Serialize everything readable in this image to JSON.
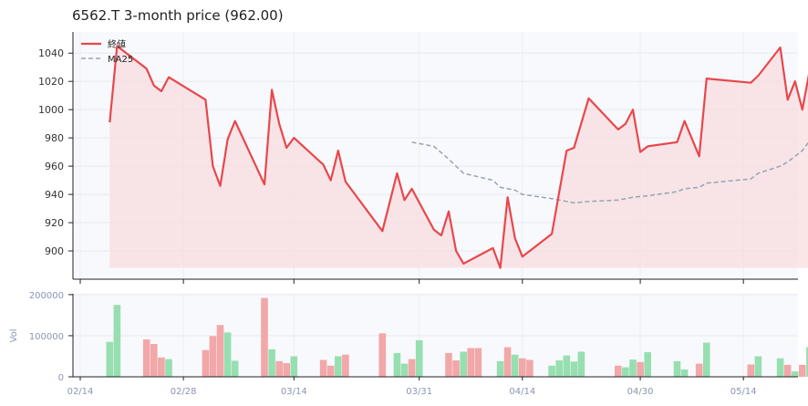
{
  "chart_data": [
    {
      "type": "line",
      "title": "6562.T  3-month price (962.00)",
      "legend_placement": "top-left",
      "grid": true,
      "colors": {
        "price": "#e8474c",
        "ma25": "#97a3b6",
        "fill": "#f8dcdf",
        "panel_bg": "#f8f9fc"
      },
      "ylim": [
        880,
        1055
      ],
      "y_ticks": [
        900,
        920,
        940,
        960,
        980,
        1000,
        1020,
        1040
      ],
      "x_tick_labels": [
        "02/14",
        "02/28",
        "03/14",
        "03/31",
        "04/14",
        "04/30",
        "05/14"
      ],
      "series": [
        {
          "name": "終値",
          "points": [
            [
              "02/18",
              991
            ],
            [
              "02/19",
              1045
            ],
            [
              "02/23",
              1029
            ],
            [
              "02/24",
              1017
            ],
            [
              "02/25",
              1013
            ],
            [
              "02/26",
              1023
            ],
            [
              "03/02",
              1007
            ],
            [
              "03/03",
              960
            ],
            [
              "03/04",
              946
            ],
            [
              "03/05",
              979
            ],
            [
              "03/06",
              992
            ],
            [
              "03/10",
              947
            ],
            [
              "03/11",
              1014
            ],
            [
              "03/12",
              990
            ],
            [
              "03/13",
              973
            ],
            [
              "03/14",
              980
            ],
            [
              "03/18",
              961
            ],
            [
              "03/19",
              950
            ],
            [
              "03/20",
              971
            ],
            [
              "03/21",
              949
            ],
            [
              "03/26",
              914
            ],
            [
              "03/28",
              955
            ],
            [
              "03/29",
              936
            ],
            [
              "03/30",
              944
            ],
            [
              "04/02",
              915
            ],
            [
              "04/03",
              911
            ],
            [
              "04/04",
              928
            ],
            [
              "04/05",
              900
            ],
            [
              "04/06",
              891
            ],
            [
              "04/10",
              902
            ],
            [
              "04/11",
              888
            ],
            [
              "04/12",
              938
            ],
            [
              "04/13",
              909
            ],
            [
              "04/14",
              896
            ],
            [
              "04/18",
              912
            ],
            [
              "04/20",
              971
            ],
            [
              "04/21",
              973
            ],
            [
              "04/23",
              1008
            ],
            [
              "04/27",
              986
            ],
            [
              "04/28",
              990
            ],
            [
              "04/29",
              1000
            ],
            [
              "04/30",
              970
            ],
            [
              "05/01",
              974
            ],
            [
              "05/05",
              977
            ],
            [
              "05/06",
              992
            ],
            [
              "05/08",
              967
            ],
            [
              "05/09",
              1022
            ],
            [
              "05/15",
              1019
            ],
            [
              "05/16",
              1024
            ],
            [
              "05/19",
              1044
            ],
            [
              "05/20",
              1007
            ],
            [
              "05/21",
              1020
            ],
            [
              "05/22",
              1000
            ],
            [
              "05/23",
              1028
            ],
            [
              "05/27",
              971
            ],
            [
              "05/28",
              962
            ]
          ]
        },
        {
          "name": "MA25",
          "points": [
            [
              "03/30",
              977
            ],
            [
              "04/02",
              974
            ],
            [
              "04/04",
              965
            ],
            [
              "04/06",
              955
            ],
            [
              "04/10",
              950
            ],
            [
              "04/11",
              945
            ],
            [
              "04/13",
              943
            ],
            [
              "04/14",
              940
            ],
            [
              "04/18",
              937
            ],
            [
              "04/20",
              935
            ],
            [
              "04/21",
              934
            ],
            [
              "04/23",
              935
            ],
            [
              "04/27",
              936
            ],
            [
              "04/29",
              938
            ],
            [
              "05/01",
              939
            ],
            [
              "05/05",
              942
            ],
            [
              "05/06",
              944
            ],
            [
              "05/08",
              945
            ],
            [
              "05/09",
              948
            ],
            [
              "05/15",
              951
            ],
            [
              "05/16",
              955
            ],
            [
              "05/19",
              960
            ],
            [
              "05/20",
              963
            ],
            [
              "05/22",
              971
            ],
            [
              "05/23",
              978
            ],
            [
              "05/27",
              981
            ],
            [
              "05/28",
              983
            ]
          ]
        }
      ]
    },
    {
      "type": "bar",
      "ylabel": "Vol",
      "ylim": [
        0,
        200000
      ],
      "y_ticks": [
        0,
        100000,
        200000
      ],
      "y_tick_labels": [
        "0",
        "100000",
        "200000"
      ],
      "colors": {
        "up": "#97dfb0",
        "down": "#f2a7a9"
      },
      "bars": [
        [
          "02/18",
          85000,
          "up"
        ],
        [
          "02/19",
          175000,
          "up"
        ],
        [
          "02/23",
          91000,
          "down"
        ],
        [
          "02/24",
          80000,
          "down"
        ],
        [
          "02/25",
          47000,
          "down"
        ],
        [
          "02/26",
          43000,
          "up"
        ],
        [
          "03/02",
          65000,
          "down"
        ],
        [
          "03/03",
          99000,
          "down"
        ],
        [
          "03/04",
          126000,
          "down"
        ],
        [
          "03/05",
          108000,
          "up"
        ],
        [
          "03/06",
          39000,
          "up"
        ],
        [
          "03/10",
          192000,
          "down"
        ],
        [
          "03/11",
          67000,
          "up"
        ],
        [
          "03/12",
          38000,
          "down"
        ],
        [
          "03/13",
          33000,
          "down"
        ],
        [
          "03/14",
          50000,
          "up"
        ],
        [
          "03/18",
          41000,
          "down"
        ],
        [
          "03/19",
          27000,
          "down"
        ],
        [
          "03/20",
          50000,
          "up"
        ],
        [
          "03/21",
          54000,
          "down"
        ],
        [
          "03/26",
          106000,
          "down"
        ],
        [
          "03/28",
          58000,
          "up"
        ],
        [
          "03/29",
          32000,
          "up"
        ],
        [
          "03/30",
          43000,
          "down"
        ],
        [
          "03/31",
          89000,
          "up"
        ],
        [
          "04/04",
          58000,
          "down"
        ],
        [
          "04/05",
          40000,
          "down"
        ],
        [
          "04/06",
          61000,
          "up"
        ],
        [
          "04/07",
          70000,
          "down"
        ],
        [
          "04/08",
          70000,
          "down"
        ],
        [
          "04/11",
          38000,
          "up"
        ],
        [
          "04/12",
          72000,
          "down"
        ],
        [
          "04/13",
          54000,
          "up"
        ],
        [
          "04/14",
          45000,
          "down"
        ],
        [
          "04/15",
          41000,
          "down"
        ],
        [
          "04/18",
          27000,
          "up"
        ],
        [
          "04/19",
          40000,
          "up"
        ],
        [
          "04/20",
          52000,
          "up"
        ],
        [
          "04/21",
          37000,
          "up"
        ],
        [
          "04/22",
          61000,
          "up"
        ],
        [
          "04/27",
          27000,
          "down"
        ],
        [
          "04/28",
          23000,
          "up"
        ],
        [
          "04/29",
          42000,
          "up"
        ],
        [
          "04/30",
          36000,
          "down"
        ],
        [
          "05/01",
          60000,
          "up"
        ],
        [
          "05/05",
          38000,
          "up"
        ],
        [
          "05/06",
          18000,
          "up"
        ],
        [
          "05/08",
          32000,
          "down"
        ],
        [
          "05/09",
          83000,
          "up"
        ],
        [
          "05/15",
          30000,
          "down"
        ],
        [
          "05/16",
          50000,
          "up"
        ],
        [
          "05/19",
          45000,
          "up"
        ],
        [
          "05/20",
          29000,
          "down"
        ],
        [
          "05/21",
          13000,
          "up"
        ],
        [
          "05/22",
          29000,
          "down"
        ],
        [
          "05/23",
          72000,
          "up"
        ],
        [
          "05/27",
          110000,
          "down"
        ],
        [
          "05/28",
          67000,
          "down"
        ]
      ]
    }
  ]
}
